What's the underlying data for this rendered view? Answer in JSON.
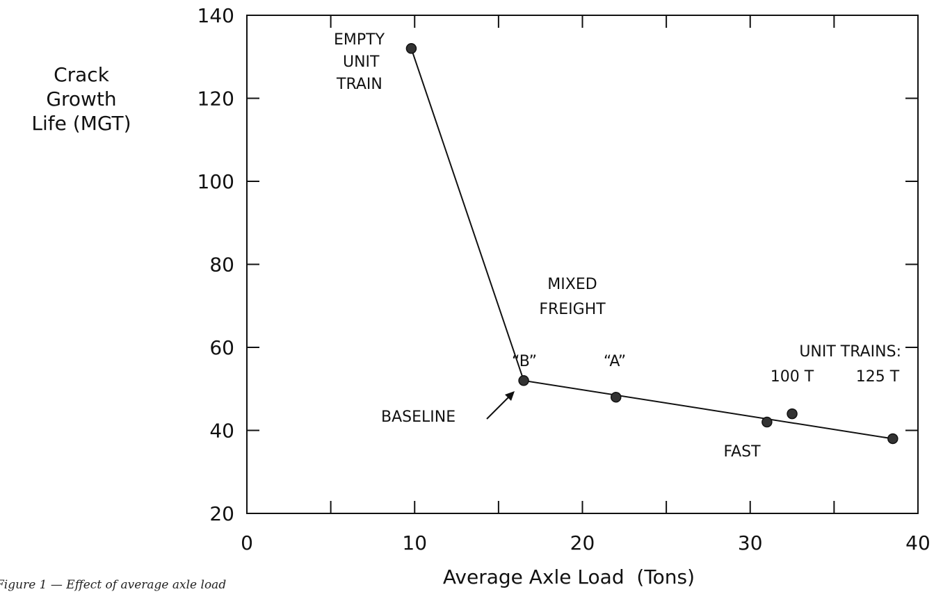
{
  "caption": "Figure 1 — Effect of average axle load",
  "chart_data": {
    "type": "line",
    "xlabel": "Average Axle Load  (Tons)",
    "ylabel": [
      "Crack",
      "Growth",
      "Life  (MGT)"
    ],
    "xlim": [
      0,
      40
    ],
    "ylim": [
      20,
      140
    ],
    "x_ticks": [
      0,
      10,
      20,
      30,
      40
    ],
    "y_ticks": [
      20,
      40,
      60,
      80,
      100,
      120,
      140
    ],
    "grid": false,
    "line_points": [
      {
        "x": 9.8,
        "y": 132
      },
      {
        "x": 16.5,
        "y": 52
      },
      {
        "x": 38.5,
        "y": 38
      }
    ],
    "points": [
      {
        "x": 9.8,
        "y": 132
      },
      {
        "x": 16.5,
        "y": 52
      },
      {
        "x": 22.0,
        "y": 48
      },
      {
        "x": 31.0,
        "y": 42
      },
      {
        "x": 32.5,
        "y": 44
      },
      {
        "x": 38.5,
        "y": 38
      }
    ],
    "annotations": {
      "empty_unit_train": [
        "EMPTY",
        "UNIT",
        "TRAIN"
      ],
      "mixed_freight": [
        "MIXED",
        "FREIGHT"
      ],
      "b": "“B”",
      "a": "“A”",
      "unit_trains": "UNIT TRAINS:",
      "t100": "100 T",
      "t125": "125 T",
      "baseline": "BASELINE",
      "fast": "FAST"
    }
  }
}
